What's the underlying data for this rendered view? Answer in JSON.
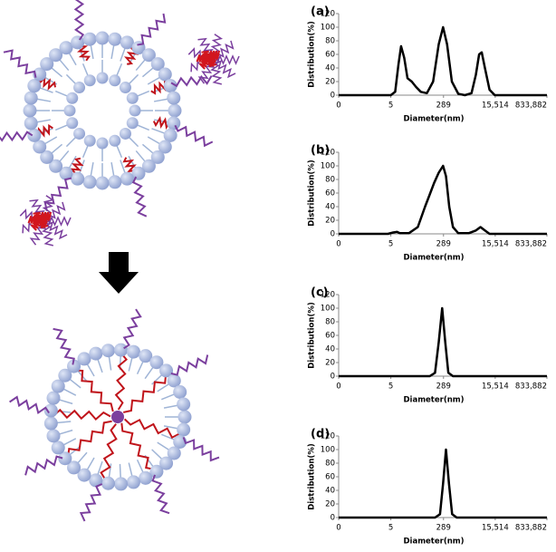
{
  "chart_data": [
    {
      "type": "line",
      "title": "(a)",
      "x_label": "Diameter(nm)",
      "y_label": "Distribution(%)",
      "color": "#000000",
      "x": [
        0.09,
        1,
        5,
        7,
        9,
        11,
        14,
        18,
        25,
        35,
        50,
        80,
        130,
        200,
        280,
        380,
        550,
        900,
        1500,
        2500,
        3500,
        4500,
        5500,
        7000,
        10000,
        15000,
        833882
      ],
      "values": [
        0,
        0,
        0,
        5,
        45,
        72,
        55,
        25,
        20,
        12,
        5,
        3,
        20,
        75,
        100,
        75,
        20,
        2,
        0,
        3,
        30,
        60,
        63,
        40,
        8,
        0,
        0
      ],
      "xscale": "log",
      "xlim": [
        0.09,
        833882
      ],
      "xticks": [
        {
          "value": 0.09,
          "label": "0"
        },
        5,
        289,
        {
          "value": 15514,
          "label": "15,514"
        },
        {
          "value": 833882,
          "label": "833,882"
        }
      ],
      "ylim": [
        0,
        120
      ],
      "yticks": [
        0,
        20,
        40,
        60,
        80,
        100,
        120
      ],
      "grid": false
    },
    {
      "type": "line",
      "title": "(b)",
      "x_label": "Diameter(nm)",
      "y_label": "Distribution(%)",
      "color": "#000000",
      "x": [
        0.09,
        1,
        4,
        6,
        8,
        10,
        20,
        40,
        70,
        100,
        140,
        200,
        280,
        350,
        450,
        600,
        900,
        2000,
        3500,
        5000,
        7000,
        10000,
        833882
      ],
      "values": [
        0,
        0,
        0,
        2,
        3,
        1,
        1,
        10,
        40,
        58,
        75,
        90,
        100,
        85,
        40,
        10,
        1,
        1,
        5,
        10,
        5,
        0,
        0
      ],
      "xscale": "log",
      "xlim": [
        0.09,
        833882
      ],
      "xticks": [
        {
          "value": 0.09,
          "label": "0"
        },
        5,
        289,
        {
          "value": 15514,
          "label": "15,514"
        },
        {
          "value": 833882,
          "label": "833,882"
        }
      ],
      "ylim": [
        0,
        120
      ],
      "yticks": [
        0,
        20,
        40,
        60,
        80,
        100,
        120
      ],
      "grid": false
    },
    {
      "type": "line",
      "title": "(c)",
      "x_label": "Diameter(nm)",
      "y_label": "Distribution(%)",
      "color": "#000000",
      "x": [
        0.09,
        1,
        100,
        150,
        200,
        260,
        330,
        420,
        600,
        833882
      ],
      "values": [
        0,
        0,
        0,
        5,
        50,
        100,
        50,
        5,
        0,
        0
      ],
      "xscale": "log",
      "xlim": [
        0.09,
        833882
      ],
      "xticks": [
        {
          "value": 0.09,
          "label": "0"
        },
        5,
        289,
        {
          "value": 15514,
          "label": "15,514"
        },
        {
          "value": 833882,
          "label": "833,882"
        }
      ],
      "ylim": [
        0,
        120
      ],
      "yticks": [
        0,
        20,
        40,
        60,
        80,
        100,
        120
      ],
      "grid": false
    },
    {
      "type": "line",
      "title": "(d)",
      "x_label": "Diameter(nm)",
      "y_label": "Distribution(%)",
      "color": "#000000",
      "x": [
        0.09,
        1,
        150,
        220,
        280,
        350,
        440,
        560,
        800,
        833882
      ],
      "values": [
        0,
        0,
        0,
        5,
        50,
        100,
        50,
        5,
        0,
        0
      ],
      "xscale": "log",
      "xlim": [
        0.09,
        833882
      ],
      "xticks": [
        {
          "value": 0.09,
          "label": "0"
        },
        5,
        289,
        {
          "value": 15514,
          "label": "15,514"
        },
        {
          "value": 833882,
          "label": "833,882"
        }
      ],
      "ylim": [
        0,
        120
      ],
      "yticks": [
        0,
        20,
        40,
        60,
        80,
        100,
        120
      ],
      "grid": false
    }
  ]
}
